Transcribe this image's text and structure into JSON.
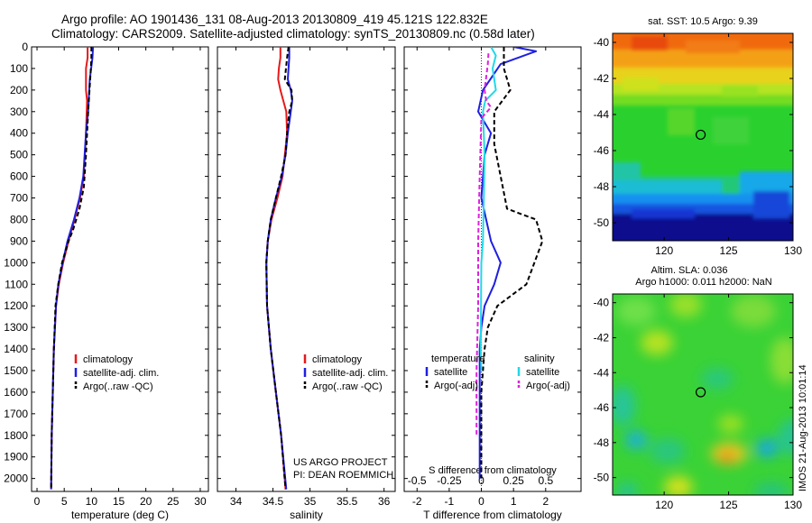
{
  "header": {
    "line1": "Argo profile: AO 1901436_131 08-Aug-2013 20130809_419 45.121S 122.832E",
    "line2": "Climatology: CARS2009. Satellite-adjusted climatology: synTS_20130809.nc (0.58d later)"
  },
  "colors": {
    "climatology": "#e41a1c",
    "satellite_adj": "#1f1fe0",
    "argo": "#000000",
    "temperature_satellite": "#1f1fe0",
    "salinity_satellite": "#22d8e8",
    "salinity_argo": "#e020e0"
  },
  "credits": {
    "project": "US ARGO PROJECT",
    "pi": "PI: DEAN ROEMMICH",
    "imos": "IMOS 21-Aug-2013 10:01:14"
  },
  "chart_data": [
    {
      "type": "line",
      "panel": "temperature",
      "xlabel": "temperature (deg C)",
      "xlim": [
        -1,
        31.5
      ],
      "xticks": [
        "0",
        "5",
        "10",
        "15",
        "20",
        "25",
        "30"
      ],
      "ylim": [
        2060,
        0
      ],
      "yticks": [
        "0",
        "100",
        "200",
        "300",
        "400",
        "500",
        "600",
        "700",
        "800",
        "900",
        "1000",
        "1100",
        "1200",
        "1300",
        "1400",
        "1500",
        "1600",
        "1700",
        "1800",
        "1900",
        "2000"
      ],
      "legend": [
        "climatology",
        "satellite-adj. clim.",
        "Argo(..raw -QC)"
      ],
      "legend_position": "lower-middle",
      "series": [
        {
          "name": "climatology",
          "color": "#e41a1c",
          "dash": "",
          "x": [
            9.3,
            9.3,
            9.0,
            9.0,
            9.2,
            9.0,
            8.6,
            7.9,
            6.9,
            5.8,
            4.8,
            4.0,
            3.5,
            3.1,
            2.9,
            2.7,
            2.6
          ],
          "y": [
            0,
            50,
            100,
            200,
            250,
            400,
            600,
            700,
            800,
            900,
            1000,
            1100,
            1200,
            1400,
            1600,
            1800,
            2050
          ]
        },
        {
          "name": "satellite-adj. clim.",
          "color": "#1f1fe0",
          "dash": "",
          "x": [
            10.3,
            10.2,
            9.7,
            9.5,
            9.4,
            9.0,
            8.5,
            7.8,
            6.8,
            5.6,
            4.7,
            3.9,
            3.5,
            3.1,
            2.9,
            2.7,
            2.6
          ],
          "y": [
            0,
            50,
            150,
            250,
            300,
            400,
            600,
            700,
            800,
            900,
            1000,
            1100,
            1200,
            1400,
            1600,
            1800,
            2050
          ]
        },
        {
          "name": "Argo(..raw -QC)",
          "color": "#000000",
          "dash": "5,3",
          "x": [
            10.0,
            10.0,
            9.9,
            9.4,
            9.0,
            8.6,
            7.8,
            7.2,
            6.6,
            5.8,
            4.6,
            3.9,
            3.4,
            3.1,
            2.9,
            2.7,
            2.6
          ],
          "y": [
            0,
            50,
            100,
            300,
            500,
            650,
            750,
            800,
            850,
            900,
            1000,
            1100,
            1200,
            1400,
            1600,
            1800,
            2050
          ]
        }
      ]
    },
    {
      "type": "line",
      "panel": "salinity",
      "xlabel": "salinity",
      "xlim": [
        33.75,
        36.15
      ],
      "xticks": [
        "34",
        "34.5",
        "35",
        "35.5",
        "36"
      ],
      "ylim": [
        2060,
        0
      ],
      "legend": [
        "climatology",
        "satellite-adj. clim.",
        "Argo(..raw -QC)"
      ],
      "legend_position": "lower-right",
      "series": [
        {
          "name": "climatology",
          "color": "#e41a1c",
          "dash": "",
          "x": [
            34.6,
            34.6,
            34.58,
            34.57,
            34.6,
            34.68,
            34.69,
            34.66,
            34.63,
            34.56,
            34.48,
            34.43,
            34.41,
            34.42,
            34.47,
            34.54,
            34.61,
            34.67
          ],
          "y": [
            0,
            50,
            100,
            150,
            200,
            300,
            400,
            500,
            600,
            700,
            800,
            900,
            1000,
            1200,
            1400,
            1600,
            1800,
            2050
          ]
        },
        {
          "name": "satellite-adj. clim.",
          "color": "#1f1fe0",
          "dash": "",
          "x": [
            34.72,
            34.72,
            34.7,
            34.74,
            34.76,
            34.74,
            34.7,
            34.67,
            34.62,
            34.54,
            34.47,
            34.43,
            34.41,
            34.42,
            34.47,
            34.54,
            34.61,
            34.68
          ],
          "y": [
            0,
            50,
            150,
            200,
            250,
            300,
            400,
            500,
            600,
            700,
            800,
            900,
            1000,
            1200,
            1400,
            1600,
            1800,
            2050
          ]
        },
        {
          "name": "Argo(..raw -QC)",
          "color": "#000000",
          "dash": "5,3",
          "x": [
            34.71,
            34.69,
            34.66,
            34.75,
            34.76,
            34.72,
            34.69,
            34.67,
            34.61,
            34.54,
            34.47,
            34.43,
            34.41,
            34.42,
            34.47,
            34.54,
            34.61,
            34.67
          ],
          "y": [
            0,
            50,
            150,
            200,
            250,
            300,
            400,
            500,
            600,
            700,
            800,
            900,
            1000,
            1200,
            1400,
            1600,
            1800,
            2050
          ]
        }
      ]
    },
    {
      "type": "line",
      "panel": "difference",
      "xlabel": "T difference from climatology",
      "xlabel_top": "S difference from climatology",
      "xlim": [
        -2.4,
        3.1
      ],
      "xticks": [
        "-2",
        "-1",
        "0",
        "1",
        "2"
      ],
      "xticks_salinity": [
        "-0.5",
        "-0.25",
        "0",
        "0.25",
        "0.5"
      ],
      "ylim": [
        2060,
        0
      ],
      "legend_temperature_title": "temperature",
      "legend_salinity_title": "salinity",
      "legend_temperature": [
        "satellite",
        "Argo(-adj)"
      ],
      "legend_salinity": [
        "satellite",
        "Argo(-adj)"
      ],
      "legend_position": "lower-middle",
      "series": [
        {
          "name": "temperature satellite",
          "color": "#1f1fe0",
          "dash": "",
          "x": [
            1.0,
            1.7,
            0.6,
            0.05,
            -0.1,
            0.3,
            0.1,
            0.0,
            0.3,
            0.6,
            0.4,
            0.1,
            0.0,
            -0.05,
            -0.05,
            -0.05,
            -0.05
          ],
          "y": [
            0,
            20,
            80,
            200,
            300,
            400,
            500,
            700,
            900,
            1000,
            1100,
            1200,
            1300,
            1400,
            1600,
            1800,
            2000
          ]
        },
        {
          "name": "temperature Argo(-adj)",
          "color": "#000000",
          "dash": "5,3",
          "x": [
            0.7,
            0.7,
            0.9,
            0.4,
            0.4,
            0.6,
            0.8,
            1.7,
            1.9,
            1.4,
            0.5,
            0.2,
            0.1,
            0.0,
            0.0,
            0.0
          ],
          "y": [
            0,
            100,
            200,
            300,
            450,
            600,
            750,
            800,
            900,
            1100,
            1200,
            1300,
            1400,
            1600,
            1800,
            2000
          ]
        },
        {
          "name": "salinity satellite",
          "color": "#22d8e8",
          "dash": "",
          "x": [
            0.3,
            0.45,
            0.35,
            0.45,
            0.12,
            0.05,
            0.1,
            0.05,
            0.0,
            -0.02,
            0.0
          ],
          "y": [
            0,
            40,
            100,
            200,
            250,
            300,
            500,
            900,
            1000,
            1400,
            1500
          ]
        },
        {
          "name": "salinity Argo(-adj)",
          "color": "#e020e0",
          "dash": "5,3",
          "x": [
            0.22,
            0.2,
            0.1,
            0.15,
            0.3,
            0.0,
            -0.05,
            -0.1,
            -0.1,
            -0.15,
            -0.15
          ],
          "y": [
            30,
            80,
            200,
            250,
            280,
            330,
            600,
            900,
            1200,
            1500,
            1800
          ]
        }
      ]
    },
    {
      "type": "heatmap",
      "panel": "sst_map",
      "title": "sat. SST: 10.5  Argo: 9.39",
      "xlim": [
        116,
        130
      ],
      "ylim": [
        -51,
        -39.5
      ],
      "xticks": [
        "120",
        "125",
        "130"
      ],
      "yticks": [
        "-40",
        "-42",
        "-44",
        "-46",
        "-48",
        "-50"
      ],
      "marker": {
        "lon": 122.832,
        "lat": -45.121
      }
    },
    {
      "type": "heatmap",
      "panel": "sla_map",
      "title": "Altim. SLA: 0.036",
      "subtitle": "Argo h1000: 0.011 h2000: NaN",
      "xlim": [
        116,
        130
      ],
      "ylim": [
        -51,
        -39.5
      ],
      "xticks": [
        "120",
        "125",
        "130"
      ],
      "yticks": [
        "-40",
        "-42",
        "-44",
        "-46",
        "-48",
        "-50"
      ],
      "marker": {
        "lon": 122.832,
        "lat": -45.121
      }
    }
  ]
}
